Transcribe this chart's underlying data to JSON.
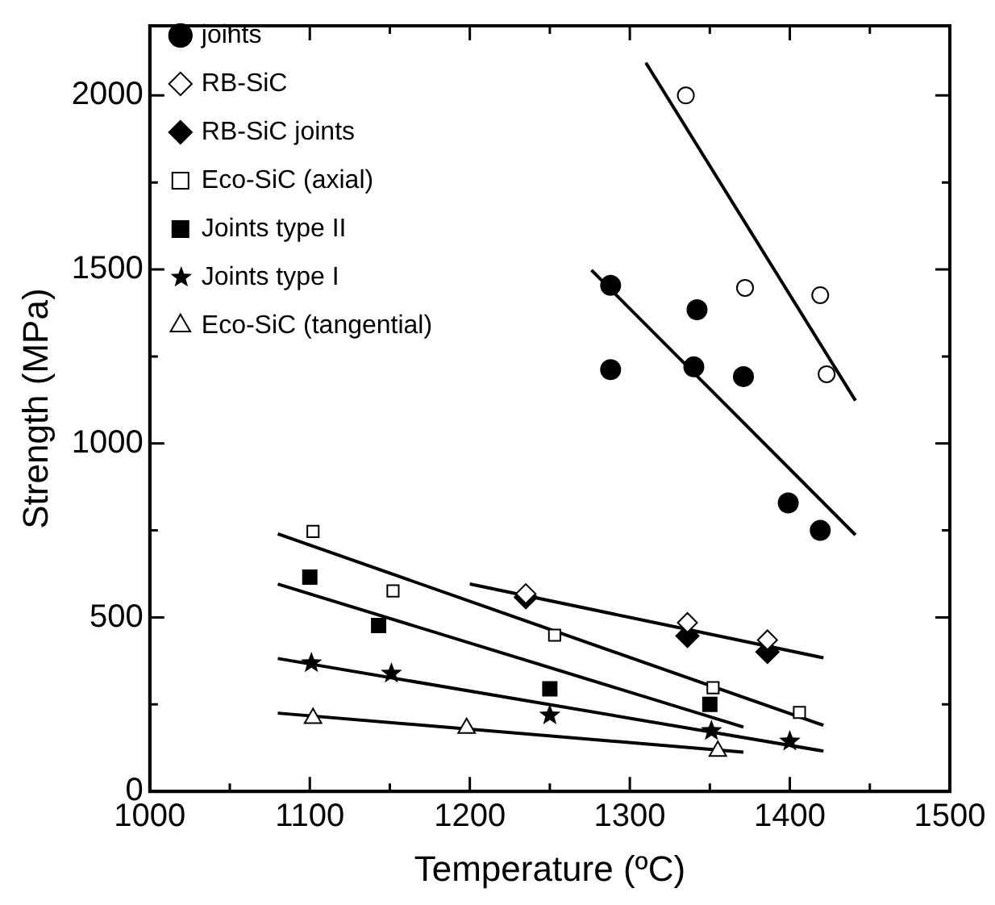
{
  "chart_data": {
    "type": "scatter",
    "xlabel": "Temperature (ºC)",
    "ylabel": "Strength (MPa)",
    "xlim": [
      1000,
      1500
    ],
    "ylim": [
      0,
      2200
    ],
    "xticks": [
      1000,
      {
        "value": 1050,
        "label": null
      },
      1100,
      {
        "value": 1150,
        "label": null
      },
      1200,
      {
        "value": 1250,
        "label": null
      },
      1300,
      {
        "value": 1350,
        "label": null
      },
      1400,
      {
        "value": 1450,
        "label": null
      },
      1500
    ],
    "yticks": [
      0,
      {
        "value": 250,
        "label": null
      },
      500,
      {
        "value": 750,
        "label": null
      },
      1000,
      {
        "value": 1250,
        "label": null
      },
      1500,
      {
        "value": 1750,
        "label": null
      },
      2000
    ],
    "grid": false,
    "legend": "top left",
    "series": [
      {
        "type": "scatter",
        "marker": "circle",
        "color": "#ffffff",
        "x": [
          1335,
          1372,
          1419,
          1423
        ],
        "values": [
          2000,
          1447,
          1426,
          1199
        ]
      },
      {
        "name": "joints",
        "type": "scatter",
        "marker": "circle",
        "color": "#000000",
        "x": [
          1288,
          1342,
          1288,
          1340,
          1371,
          1399,
          1419
        ],
        "values": [
          1454,
          1384,
          1212,
          1220,
          1192,
          829,
          750
        ]
      },
      {
        "name": "RB-SiC",
        "type": "scatter",
        "marker": "diamond",
        "color": "#ffffff",
        "x": [
          1235,
          1336,
          1386
        ],
        "values": [
          568,
          485,
          435
        ]
      },
      {
        "name": "RB-SiC joints",
        "type": "scatter",
        "marker": "diamond",
        "color": "#000000",
        "x": [
          1235,
          1336,
          1386
        ],
        "values": [
          558,
          447,
          401
        ]
      },
      {
        "name": "Eco-SiC (axial)",
        "type": "scatter",
        "marker": "square",
        "color": "#ffffff",
        "x": [
          1102,
          1152,
          1253,
          1352,
          1406
        ],
        "values": [
          747,
          576,
          449,
          298,
          227
        ]
      },
      {
        "name": "Joints type II",
        "type": "scatter",
        "marker": "square",
        "color": "#000000",
        "x": [
          1100,
          1143,
          1250,
          1350
        ],
        "values": [
          616,
          477,
          295,
          250
        ]
      },
      {
        "name": "Joints type I",
        "type": "scatter",
        "marker": "star",
        "color": "#000000",
        "x": [
          1101,
          1151,
          1250,
          1351,
          1400
        ],
        "values": [
          369,
          339,
          219,
          174,
          144
        ]
      },
      {
        "name": "Eco-SiC (tangential)",
        "type": "scatter",
        "marker": "triangle",
        "color": "#ffffff",
        "x": [
          1102,
          1198,
          1355
        ],
        "values": [
          210,
          182,
          116
        ]
      },
      {
        "type": "line",
        "marker": "none",
        "color": "#000000",
        "x": [
          1310,
          1441
        ],
        "values": [
          2094,
          1123
        ]
      },
      {
        "type": "line",
        "marker": "none",
        "color": "#000000",
        "x": [
          1276,
          1441
        ],
        "values": [
          1498,
          737
        ]
      },
      {
        "type": "line",
        "marker": "none",
        "color": "#000000",
        "x": [
          1200,
          1421
        ],
        "values": [
          596,
          384
        ]
      },
      {
        "type": "line",
        "marker": "none",
        "color": "#000000",
        "x": [
          1080,
          1421
        ],
        "values": [
          740,
          190
        ]
      },
      {
        "type": "line",
        "marker": "none",
        "color": "#000000",
        "x": [
          1080,
          1371
        ],
        "values": [
          596,
          185
        ]
      },
      {
        "type": "line",
        "marker": "none",
        "color": "#000000",
        "x": [
          1080,
          1421
        ],
        "values": [
          382,
          116
        ]
      },
      {
        "type": "line",
        "marker": "none",
        "color": "#000000",
        "x": [
          1080,
          1371
        ],
        "values": [
          225,
          113
        ]
      }
    ]
  }
}
